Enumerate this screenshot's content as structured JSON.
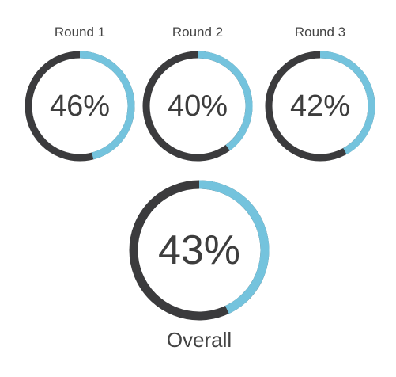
{
  "colors": {
    "track": "#3b3b3d",
    "fill": "#74c3dd"
  },
  "chart_data": [
    {
      "type": "gauge",
      "label": "Round 1",
      "value": 46,
      "display": "46%",
      "max": 100
    },
    {
      "type": "gauge",
      "label": "Round 2",
      "value": 40,
      "display": "40%",
      "max": 100
    },
    {
      "type": "gauge",
      "label": "Round 3",
      "value": 42,
      "display": "42%",
      "max": 100
    },
    {
      "type": "gauge",
      "label": "Overall",
      "value": 43,
      "display": "43%",
      "max": 100
    }
  ]
}
